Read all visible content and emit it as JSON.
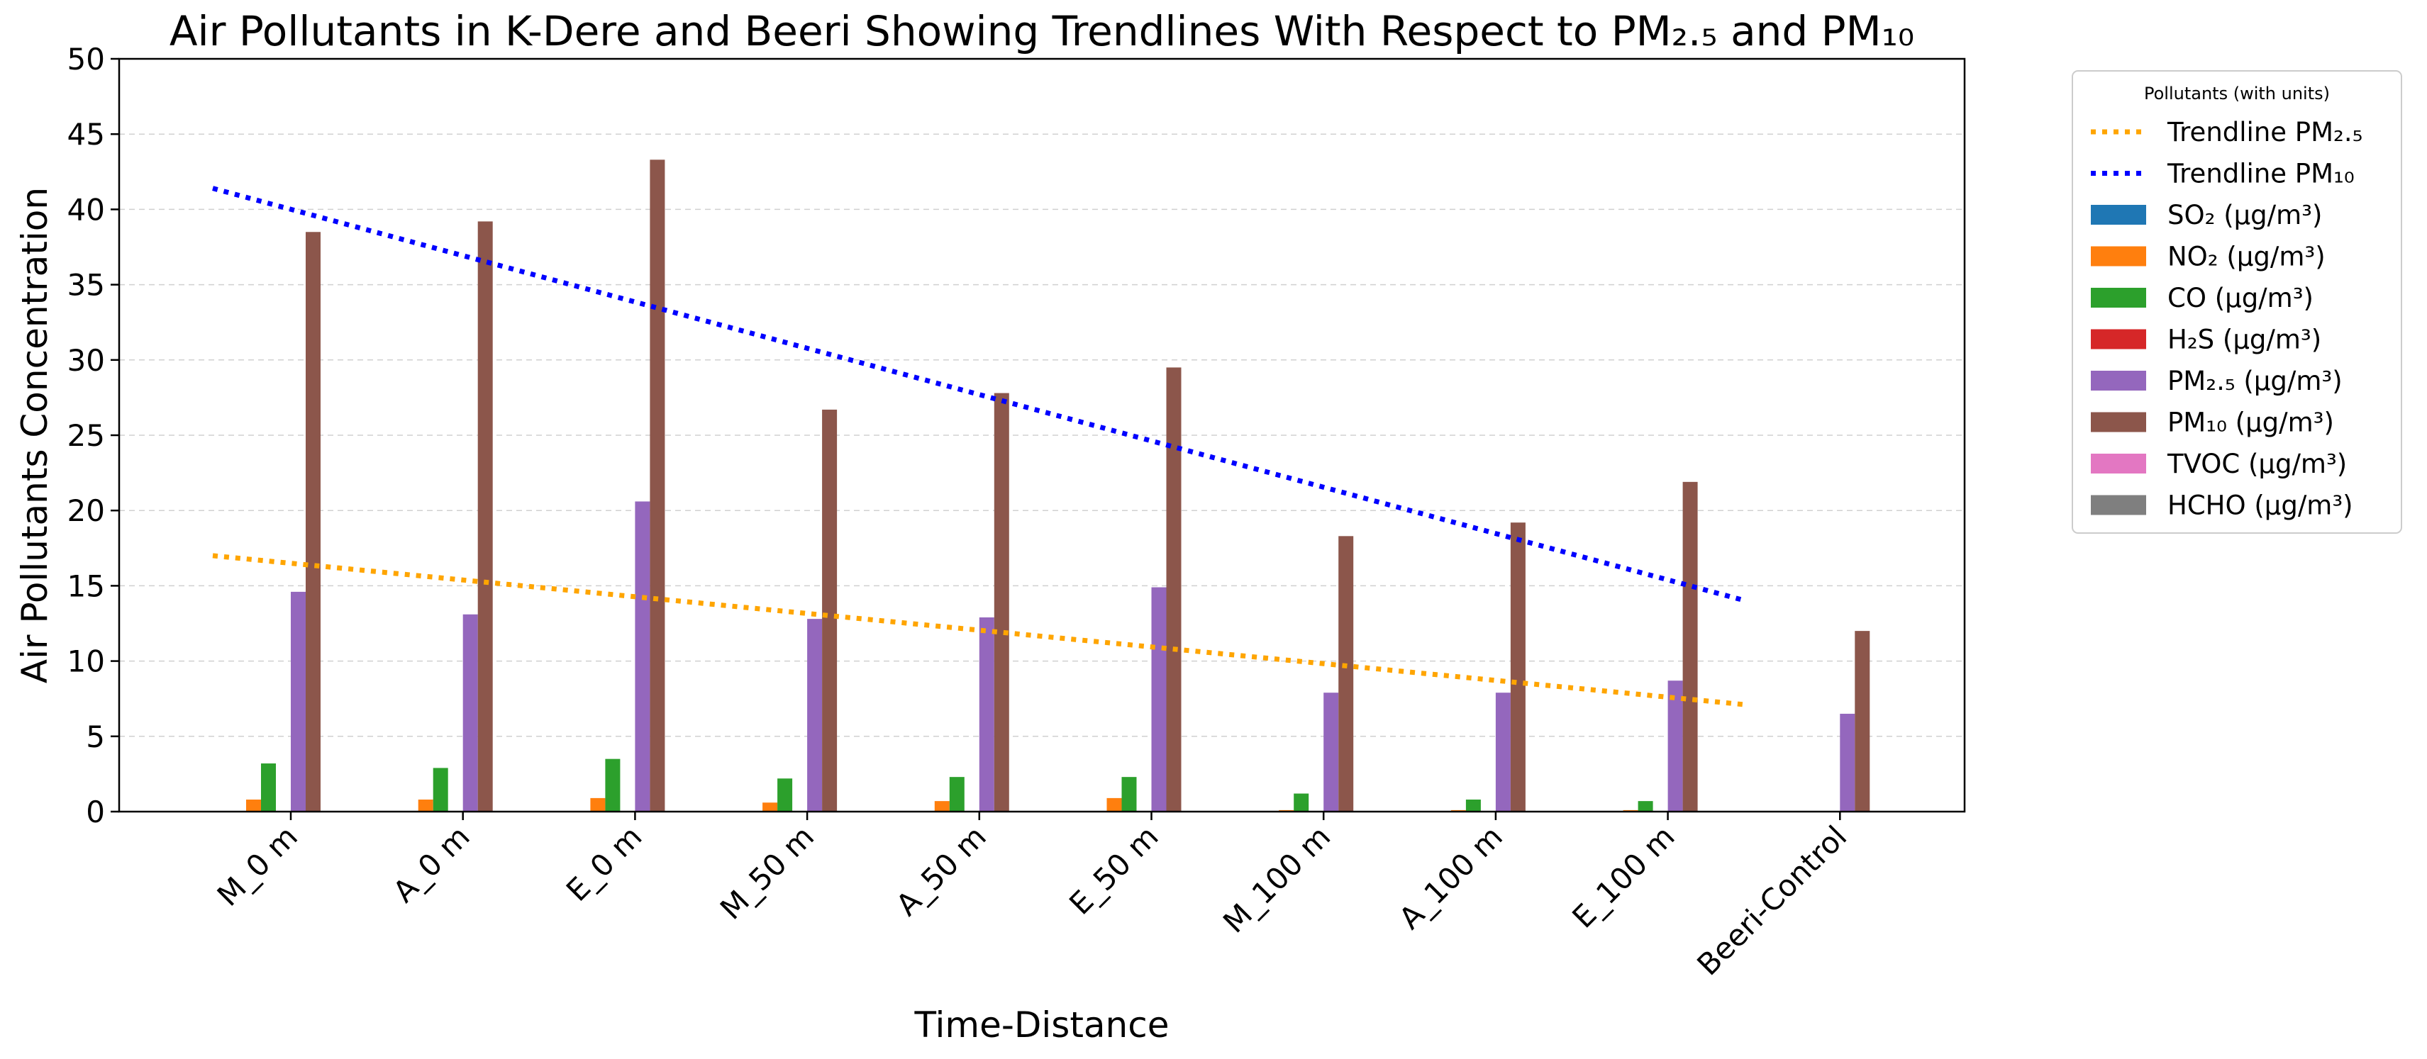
{
  "chart_data": {
    "type": "bar",
    "title": "Air Pollutants in K-Dere and Beeri Showing Trendlines With Respect to PM₂.₅ and PM₁₀",
    "xlabel": "Time-Distance",
    "ylabel": "Air Pollutants Concentration",
    "ylim": [
      0,
      50
    ],
    "yticks": [
      0,
      5,
      10,
      15,
      20,
      25,
      30,
      35,
      40,
      45,
      50
    ],
    "grid": "y-dashed",
    "legend_position": "outside-right",
    "legend_title": "Pollutants (with units)",
    "categories": [
      "M_0 m",
      "A_0 m",
      "E_0 m",
      "M_50 m",
      "A_50 m",
      "E_50 m",
      "M_100 m",
      "A_100 m",
      "E_100 m",
      "Beeri-Control"
    ],
    "series": [
      {
        "name": "SO₂ (µg/m³)",
        "color": "#1f77b4",
        "values": [
          0,
          0,
          0,
          0,
          0,
          0,
          0,
          0,
          0,
          0
        ]
      },
      {
        "name": "NO₂ (µg/m³)",
        "color": "#ff7f0e",
        "values": [
          0.8,
          0.8,
          0.9,
          0.6,
          0.7,
          0.9,
          0.1,
          0.1,
          0.1,
          0
        ]
      },
      {
        "name": "CO (µg/m³)",
        "color": "#2ca02c",
        "values": [
          3.2,
          2.9,
          3.5,
          2.2,
          2.3,
          2.3,
          1.2,
          0.8,
          0.7,
          0
        ]
      },
      {
        "name": "H₂S (µg/m³)",
        "color": "#d62728",
        "values": [
          0,
          0,
          0,
          0,
          0,
          0,
          0,
          0,
          0,
          0
        ]
      },
      {
        "name": "PM₂.₅ (µg/m³)",
        "color": "#9467bd",
        "values": [
          14.6,
          13.1,
          20.6,
          12.8,
          12.9,
          14.9,
          7.9,
          7.9,
          8.7,
          6.5
        ]
      },
      {
        "name": "PM₁₀ (µg/m³)",
        "color": "#8c564b",
        "values": [
          38.5,
          39.2,
          43.3,
          26.7,
          27.8,
          29.5,
          18.3,
          19.2,
          21.9,
          12.0
        ]
      },
      {
        "name": "TVOC (µg/m³)",
        "color": "#e377c2",
        "values": [
          0,
          0,
          0,
          0,
          0,
          0,
          0,
          0,
          0,
          0
        ]
      },
      {
        "name": "HCHO (µg/m³)",
        "color": "#7f7f7f",
        "values": [
          0,
          0,
          0,
          0,
          0,
          0,
          0,
          0,
          0,
          0
        ]
      }
    ],
    "trendlines": [
      {
        "name": "Trendline PM₂.₅",
        "color": "#ffa500",
        "style": "dotted",
        "start_category": "M_0 m",
        "end_category": "E_100 m",
        "start_value": 17.0,
        "end_value": 7.1
      },
      {
        "name": "Trendline PM₁₀",
        "color": "#0000ff",
        "style": "dotted",
        "start_category": "M_0 m",
        "end_category": "E_100 m",
        "start_value": 41.4,
        "end_value": 14.0
      }
    ]
  }
}
